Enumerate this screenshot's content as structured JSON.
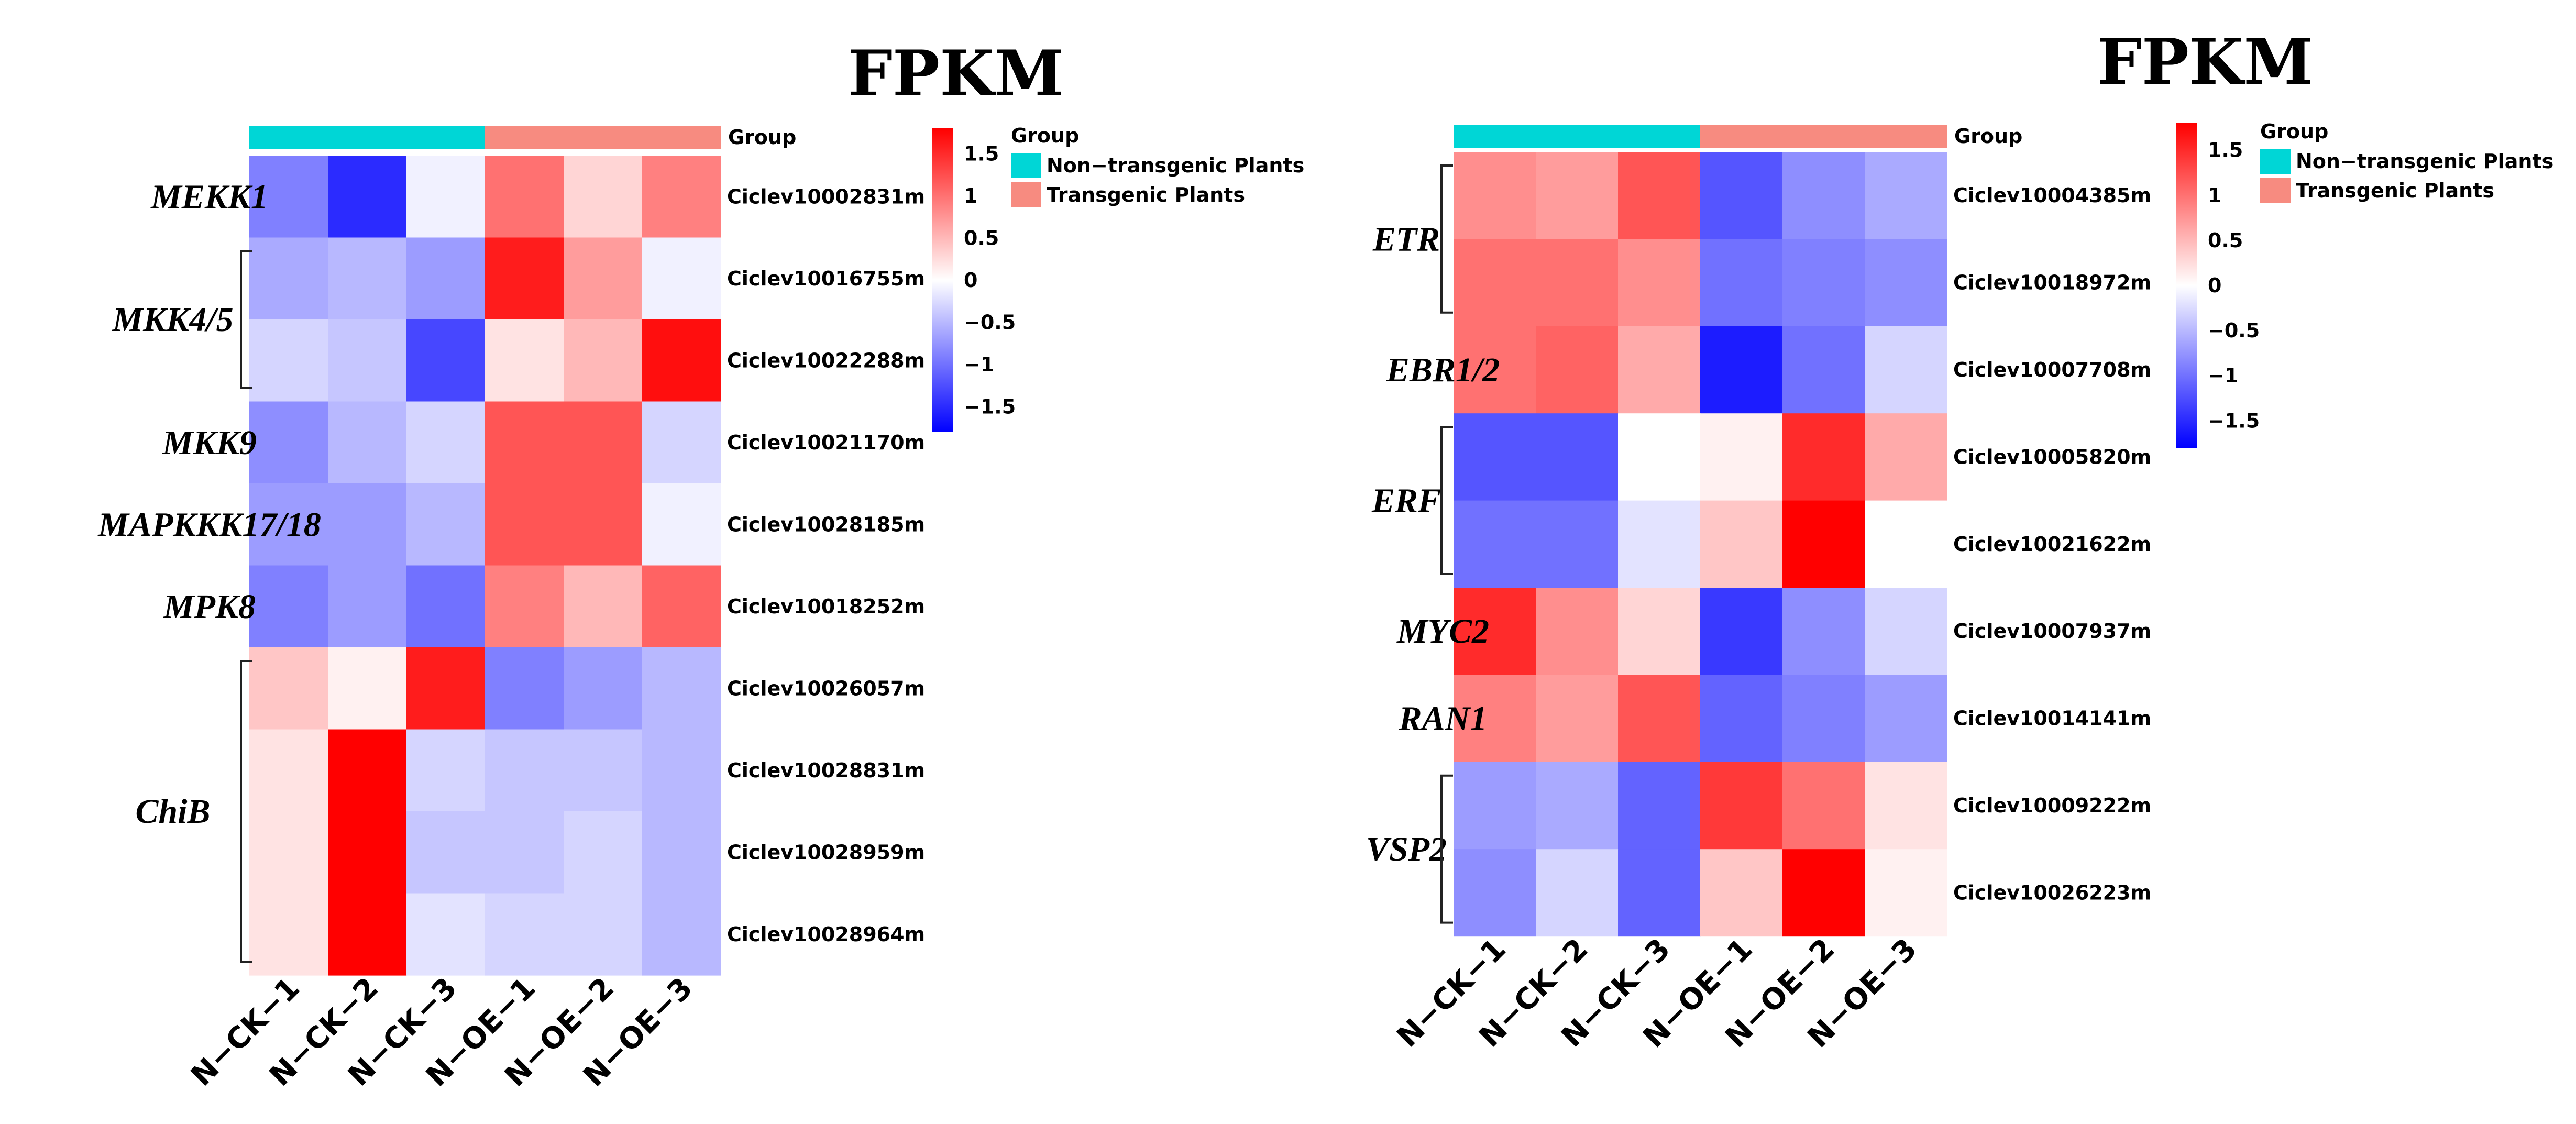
{
  "chart_data": [
    {
      "type": "heatmap",
      "title": "FPKM",
      "columns": [
        "N−CK−1",
        "N−CK−2",
        "N−CK−3",
        "N−OE−1",
        "N−OE−2",
        "N−OE−3"
      ],
      "column_groups": [
        "Non−transgenic Plants",
        "Non−transgenic Plants",
        "Non−transgenic Plants",
        "Transgenic Plants",
        "Transgenic Plants",
        "Transgenic Plants"
      ],
      "rows": [
        "Ciclev10002831m",
        "Ciclev10016755m",
        "Ciclev10022288m",
        "Ciclev10021170m",
        "Ciclev10028185m",
        "Ciclev10018252m",
        "Ciclev10026057m",
        "Ciclev10028831m",
        "Ciclev10028959m",
        "Ciclev10028964m"
      ],
      "values": [
        [
          -0.9,
          -1.5,
          -0.1,
          1.0,
          0.3,
          0.9
        ],
        [
          -0.6,
          -0.5,
          -0.7,
          1.6,
          0.7,
          -0.1
        ],
        [
          -0.3,
          -0.4,
          -1.3,
          0.2,
          0.5,
          1.7
        ],
        [
          -0.8,
          -0.5,
          -0.3,
          1.2,
          1.2,
          -0.3
        ],
        [
          -0.7,
          -0.7,
          -0.5,
          1.2,
          1.2,
          -0.1
        ],
        [
          -0.9,
          -0.7,
          -1.0,
          0.9,
          0.5,
          1.1
        ],
        [
          0.4,
          0.1,
          1.6,
          -0.9,
          -0.7,
          -0.5
        ],
        [
          0.2,
          1.9,
          -0.3,
          -0.4,
          -0.4,
          -0.5
        ],
        [
          0.2,
          1.9,
          -0.4,
          -0.4,
          -0.3,
          -0.5
        ],
        [
          0.2,
          1.9,
          -0.2,
          -0.3,
          -0.3,
          -0.5
        ]
      ],
      "gene_groups": [
        {
          "label": "MEKK1",
          "rows": [
            0,
            0
          ],
          "bracket": false
        },
        {
          "label": "MKK4/5",
          "rows": [
            1,
            2
          ],
          "bracket": true
        },
        {
          "label": "MKK9",
          "rows": [
            3,
            3
          ],
          "bracket": false
        },
        {
          "label": "MAPKKK17/18",
          "rows": [
            4,
            4
          ],
          "bracket": false
        },
        {
          "label": "MPK8",
          "rows": [
            5,
            5
          ],
          "bracket": false
        },
        {
          "label": "ChiB",
          "rows": [
            6,
            9
          ],
          "bracket": true
        }
      ],
      "group_annotation_label": "Group",
      "legend": {
        "title": "Group",
        "entries": [
          {
            "name": "Non−transgenic Plants",
            "color": "#00d6d6"
          },
          {
            "name": "Transgenic Plants",
            "color": "#f78b80"
          }
        ]
      },
      "colorbar": {
        "range": [
          -1.8,
          1.8
        ],
        "ticks": [
          1.5,
          1,
          0.5,
          0,
          -0.5,
          -1,
          -1.5
        ],
        "tick_labels": [
          "1.5",
          "1",
          "0.5",
          "0",
          "−0.5",
          "−1",
          "−1.5"
        ],
        "colors": {
          "low": "#0000ff",
          "mid": "#ffffff",
          "high": "#ff0000"
        }
      }
    },
    {
      "type": "heatmap",
      "title": "FPKM",
      "columns": [
        "N−CK−1",
        "N−CK−2",
        "N−CK−3",
        "N−OE−1",
        "N−OE−2",
        "N−OE−3"
      ],
      "column_groups": [
        "Non−transgenic Plants",
        "Non−transgenic Plants",
        "Non−transgenic Plants",
        "Transgenic Plants",
        "Transgenic Plants",
        "Transgenic Plants"
      ],
      "rows": [
        "Ciclev10004385m",
        "Ciclev10018972m",
        "Ciclev10007708m",
        "Ciclev10005820m",
        "Ciclev10021622m",
        "Ciclev10007937m",
        "Ciclev10014141m",
        "Ciclev10009222m",
        "Ciclev10026223m"
      ],
      "values": [
        [
          0.8,
          0.7,
          1.2,
          -1.2,
          -0.8,
          -0.6
        ],
        [
          1.0,
          1.0,
          0.8,
          -1.0,
          -0.9,
          -0.8
        ],
        [
          1.0,
          1.1,
          0.6,
          -1.6,
          -1.0,
          -0.3
        ],
        [
          -1.2,
          -1.2,
          0.0,
          0.1,
          1.5,
          0.6
        ],
        [
          -1.0,
          -1.0,
          -0.2,
          0.4,
          1.8,
          0.0
        ],
        [
          1.5,
          0.8,
          0.3,
          -1.4,
          -0.8,
          -0.3
        ],
        [
          0.9,
          0.7,
          1.2,
          -1.1,
          -0.9,
          -0.7
        ],
        [
          -0.7,
          -0.6,
          -1.1,
          1.4,
          1.0,
          0.2
        ],
        [
          -0.8,
          -0.3,
          -1.1,
          0.4,
          1.8,
          0.1
        ]
      ],
      "gene_groups": [
        {
          "label": "ETR",
          "rows": [
            0,
            1
          ],
          "bracket": true
        },
        {
          "label": "EBR1/2",
          "rows": [
            2,
            2
          ],
          "bracket": false
        },
        {
          "label": "ERF",
          "rows": [
            3,
            4
          ],
          "bracket": true
        },
        {
          "label": "MYC2",
          "rows": [
            5,
            5
          ],
          "bracket": false
        },
        {
          "label": "RAN1",
          "rows": [
            6,
            6
          ],
          "bracket": false
        },
        {
          "label": "VSP2",
          "rows": [
            7,
            8
          ],
          "bracket": true
        }
      ],
      "group_annotation_label": "Group",
      "legend": {
        "title": "Group",
        "entries": [
          {
            "name": "Non−transgenic Plants",
            "color": "#00d6d6"
          },
          {
            "name": "Transgenic Plants",
            "color": "#f78b80"
          }
        ]
      },
      "colorbar": {
        "range": [
          -1.8,
          1.8
        ],
        "ticks": [
          1.5,
          1,
          0.5,
          0,
          -0.5,
          -1,
          -1.5
        ],
        "tick_labels": [
          "1.5",
          "1",
          "0.5",
          "0",
          "−0.5",
          "−1",
          "−1.5"
        ],
        "colors": {
          "low": "#0000ff",
          "mid": "#ffffff",
          "high": "#ff0000"
        }
      }
    }
  ]
}
